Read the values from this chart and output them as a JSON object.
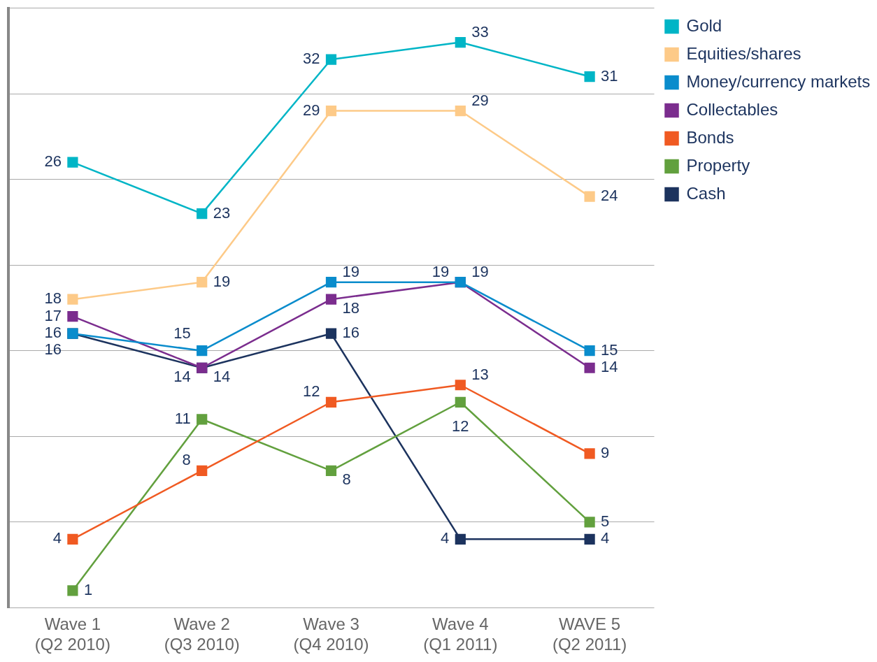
{
  "chart_data": {
    "type": "line",
    "categories": [
      "Wave 1 (Q2 2010)",
      "Wave 2 (Q3 2010)",
      "Wave 3 (Q4 2010)",
      "Wave 4 (Q1 2011)",
      "WAVE 5 (Q2 2011)"
    ],
    "series": [
      {
        "name": "Gold",
        "color": "#00b5c6",
        "values": [
          26,
          23,
          32,
          33,
          31
        ]
      },
      {
        "name": "Equities/shares",
        "color": "#fdca88",
        "values": [
          18,
          19,
          29,
          29,
          24
        ]
      },
      {
        "name": "Money/currency markets",
        "color": "#0a8ccc",
        "values": [
          16,
          15,
          19,
          19,
          15
        ]
      },
      {
        "name": "Collectables",
        "color": "#7b2d8e",
        "values": [
          17,
          14,
          18,
          19,
          14
        ]
      },
      {
        "name": "Bonds",
        "color": "#f05a22",
        "values": [
          4,
          8,
          12,
          13,
          9
        ]
      },
      {
        "name": "Property",
        "color": "#62a03e",
        "values": [
          1,
          11,
          8,
          12,
          5
        ]
      },
      {
        "name": "Cash",
        "color": "#1c335e",
        "values": [
          16,
          14,
          16,
          4,
          4
        ]
      }
    ],
    "ylim": [
      0,
      35
    ],
    "yticks": [
      {
        "value": 0,
        "label": null
      },
      {
        "value": 5,
        "label": null
      },
      {
        "value": 10,
        "label": null
      },
      {
        "value": 15,
        "label": null
      },
      {
        "value": 20,
        "label": null
      },
      {
        "value": 25,
        "label": null
      },
      {
        "value": 30,
        "label": null
      },
      {
        "value": 35,
        "label": null
      }
    ],
    "tick_labels": "x",
    "grid": "y",
    "legend": "right",
    "marker": "square",
    "line_style": "solid",
    "data_labels": true
  }
}
